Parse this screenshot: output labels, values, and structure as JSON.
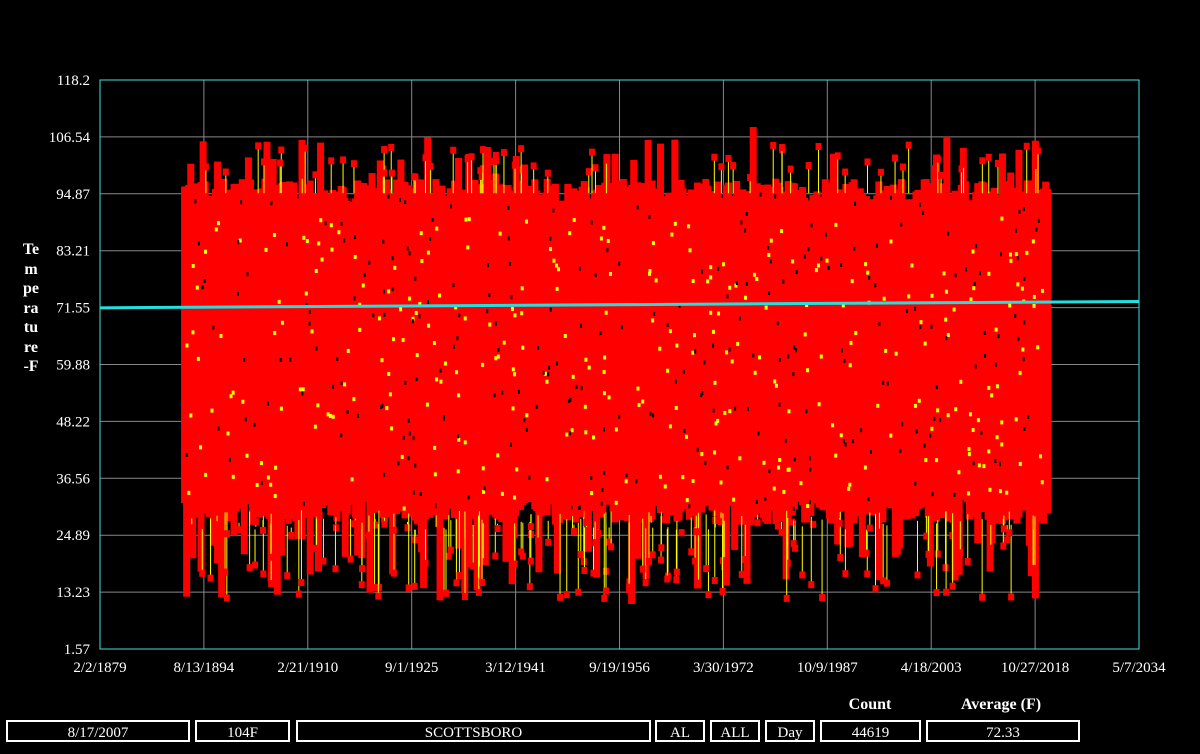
{
  "chart_data": {
    "type": "scatter",
    "ylabel": "Temperature-F",
    "y_ticks": [
      "118.2",
      "106.54",
      "94.87",
      "83.21",
      "71.55",
      "59.88",
      "48.22",
      "36.56",
      "24.89",
      "13.23",
      "1.57"
    ],
    "ylim": [
      1.57,
      118.2
    ],
    "x_ticks": [
      "2/2/1879",
      "8/13/1894",
      "2/21/1910",
      "9/1/1925",
      "3/12/1941",
      "9/19/1956",
      "3/30/1972",
      "10/9/1987",
      "4/18/2003",
      "10/27/2018",
      "5/7/2034"
    ],
    "xlim": [
      "2/2/1879",
      "5/7/2034"
    ],
    "data_range_years": [
      1891.5,
      2020.8
    ],
    "grid": true,
    "series": [
      {
        "color": "#ff0000",
        "marker": "square",
        "description_values": {
          "typical_max": 96,
          "typical_min": 33,
          "extreme_max": 110,
          "extreme_min": 11
        }
      },
      {
        "color": "#ffff00",
        "marker": "line"
      }
    ],
    "trend_line": {
      "color": "#20e0e0",
      "start": [
        1879.1,
        71.5
      ],
      "end": [
        2034.35,
        72.8
      ]
    },
    "colors": {
      "background": "#000000",
      "grid": "#ffffff",
      "axis": "#40e0e0",
      "records": "#ff0000",
      "highlight": "#ffff00",
      "trend": "#20e0e0"
    }
  },
  "footer": {
    "count_header": "Count",
    "average_header": "Average (F)",
    "date": "8/17/2007",
    "temp": "104F",
    "station": "SCOTTSBORO",
    "state": "AL",
    "scope": "ALL",
    "period": "Day",
    "count": "44619",
    "average": "72.33"
  }
}
